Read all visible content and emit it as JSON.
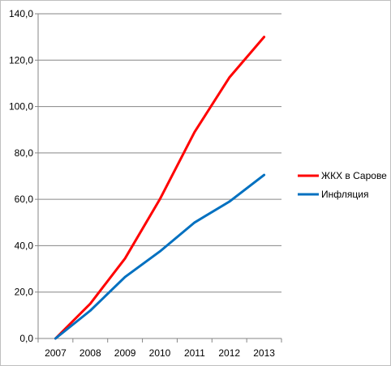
{
  "chart_data": {
    "type": "line",
    "categories": [
      "2007",
      "2008",
      "2009",
      "2010",
      "2011",
      "2012",
      "2013"
    ],
    "ylim": [
      0,
      140
    ],
    "ytick_values": [
      0,
      20,
      40,
      60,
      80,
      100,
      120,
      140
    ],
    "ytick_labels": [
      "0,0",
      "20,0",
      "40,0",
      "60,0",
      "80,0",
      "100,0",
      "120,0",
      "140,0"
    ],
    "grid": true,
    "legend_position": "right",
    "series": [
      {
        "name": "ЖКХ в Сарове",
        "color": "#ff0000",
        "values": [
          0,
          15,
          34.5,
          60,
          89,
          112.5,
          130
        ]
      },
      {
        "name": "Инфляция",
        "color": "#0070c0",
        "values": [
          0,
          12,
          26.5,
          37.5,
          50,
          59,
          70.5
        ]
      }
    ]
  }
}
